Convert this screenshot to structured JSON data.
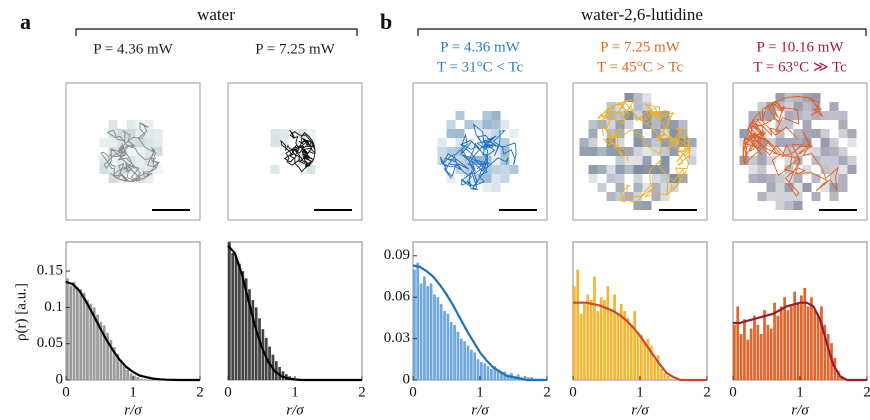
{
  "figure": {
    "panel_a": "a",
    "group_a": "water",
    "panel_b": "b",
    "group_b": "water-2,6-lutidine",
    "ylabel": "ρ(r) [a.u.]"
  },
  "chart_data": [
    {
      "type": "histogram",
      "title": "P = 4.36 mW",
      "title_color": "#222222",
      "color": "#9a9a9a",
      "xlabel": "r/σ",
      "bins": [
        0,
        0.05,
        0.1,
        0.15,
        0.2,
        0.25,
        0.3,
        0.35,
        0.4,
        0.45,
        0.5,
        0.55,
        0.6,
        0.65,
        0.7,
        0.75,
        0.8,
        0.85,
        0.9,
        0.95,
        1,
        1.05,
        1.1,
        1.15,
        1.2,
        1.25,
        1.3,
        1.35,
        1.4,
        1.45,
        1.5,
        1.55,
        1.6,
        1.65,
        1.7,
        1.75,
        1.8,
        1.85,
        1.9,
        1.95,
        2
      ],
      "values": [
        0.14,
        0.13,
        0.135,
        0.128,
        0.125,
        0.12,
        0.11,
        0.105,
        0.1,
        0.09,
        0.08,
        0.075,
        0.065,
        0.055,
        0.045,
        0.036,
        0.028,
        0.02,
        0.014,
        0.009,
        0.006,
        0.004,
        0.002,
        0.001,
        0,
        0,
        0,
        0,
        0,
        0,
        0,
        0,
        0,
        0,
        0,
        0,
        0,
        0,
        0,
        0
      ],
      "fit": {
        "color": "#000000",
        "x": [
          0,
          0.1,
          0.2,
          0.3,
          0.4,
          0.5,
          0.6,
          0.7,
          0.8,
          0.9,
          1,
          1.1,
          1.2,
          1.3,
          1.4,
          1.5,
          1.6,
          1.7,
          1.8,
          1.9,
          2
        ],
        "values": [
          0.135,
          0.132,
          0.123,
          0.108,
          0.091,
          0.073,
          0.056,
          0.041,
          0.028,
          0.018,
          0.011,
          0.006,
          0.0038,
          0.0019,
          0.0009,
          0.0004,
          0.0002,
          0,
          0,
          0,
          0
        ]
      },
      "xlim": [
        0,
        2
      ],
      "ylim": [
        0,
        0.19
      ],
      "xticks": [
        0,
        1,
        2
      ],
      "yticks": [
        0,
        0.05,
        0.1,
        0.15
      ]
    },
    {
      "type": "histogram",
      "title": "P = 7.25 mW",
      "title_color": "#222222",
      "color": "#444444",
      "xlabel": "r/σ",
      "bins": [
        0,
        0.05,
        0.1,
        0.15,
        0.2,
        0.25,
        0.3,
        0.35,
        0.4,
        0.45,
        0.5,
        0.55,
        0.6,
        0.65,
        0.7,
        0.75,
        0.8,
        0.85,
        0.9,
        0.95,
        1,
        1.05,
        1.1,
        1.15,
        1.2,
        1.25,
        1.3,
        1.35,
        1.4,
        1.45,
        1.5,
        1.55,
        1.6,
        1.65,
        1.7,
        1.75,
        1.8,
        1.85,
        1.9,
        1.95,
        2
      ],
      "values": [
        0.19,
        0.175,
        0.17,
        0.16,
        0.15,
        0.14,
        0.125,
        0.11,
        0.1,
        0.085,
        0.07,
        0.058,
        0.046,
        0.035,
        0.026,
        0.018,
        0.012,
        0.008,
        0.005,
        0.003,
        0.002,
        0.001,
        0,
        0,
        0,
        0,
        0,
        0,
        0,
        0,
        0,
        0,
        0,
        0,
        0,
        0,
        0,
        0,
        0,
        0
      ],
      "fit": {
        "color": "#000000",
        "x": [
          0,
          0.1,
          0.2,
          0.3,
          0.4,
          0.5,
          0.6,
          0.7,
          0.8,
          0.9,
          1,
          1.1,
          1.2,
          1.3,
          1.4,
          1.5,
          1.6,
          1.7,
          1.8,
          1.9,
          2
        ],
        "values": [
          0.185,
          0.175,
          0.148,
          0.112,
          0.075,
          0.046,
          0.025,
          0.012,
          0.005,
          0.002,
          0.0007,
          0,
          0,
          0,
          0,
          0,
          0,
          0,
          0,
          0,
          0
        ]
      },
      "xlim": [
        0,
        2
      ],
      "ylim": [
        0,
        0.19
      ],
      "xticks": [
        0,
        1,
        2
      ]
    },
    {
      "type": "histogram",
      "title": "P = 4.36 mW",
      "subtitle": "T = 31°C < Tc",
      "title_color": "#2a7fc1",
      "color": "#6fa8dc",
      "xlabel": "r/σ",
      "bins": [
        0,
        0.05,
        0.1,
        0.15,
        0.2,
        0.25,
        0.3,
        0.35,
        0.4,
        0.45,
        0.5,
        0.55,
        0.6,
        0.65,
        0.7,
        0.75,
        0.8,
        0.85,
        0.9,
        0.95,
        1,
        1.05,
        1.1,
        1.15,
        1.2,
        1.25,
        1.3,
        1.35,
        1.4,
        1.45,
        1.5,
        1.55,
        1.6,
        1.65,
        1.7,
        1.75,
        1.8,
        1.85,
        1.9,
        1.95,
        2
      ],
      "values": [
        0.08,
        0.085,
        0.07,
        0.075,
        0.068,
        0.07,
        0.062,
        0.06,
        0.055,
        0.05,
        0.048,
        0.042,
        0.04,
        0.035,
        0.03,
        0.028,
        0.025,
        0.022,
        0.02,
        0.015,
        0.013,
        0.012,
        0.01,
        0.008,
        0.01,
        0.007,
        0.005,
        0.006,
        0.004,
        0.005,
        0.003,
        0.004,
        0.002,
        0.003,
        0.002,
        0.002,
        0.001,
        0.001,
        0.001,
        0
      ],
      "fit": {
        "color": "#1f6fbf",
        "x": [
          0,
          0.1,
          0.2,
          0.3,
          0.4,
          0.5,
          0.6,
          0.7,
          0.8,
          0.9,
          1,
          1.1,
          1.2,
          1.3,
          1.4,
          1.5,
          1.6,
          1.7,
          1.8,
          1.9,
          2
        ],
        "values": [
          0.083,
          0.082,
          0.079,
          0.075,
          0.069,
          0.062,
          0.054,
          0.045,
          0.036,
          0.028,
          0.02,
          0.014,
          0.009,
          0.006,
          0.003,
          0.002,
          0.001,
          0,
          0,
          0,
          0
        ]
      },
      "xlim": [
        0,
        2
      ],
      "ylim": [
        0,
        0.1
      ],
      "xticks": [
        0,
        1,
        2
      ],
      "yticks": [
        0,
        0.03,
        0.06,
        0.09
      ]
    },
    {
      "type": "histogram",
      "title": "P = 7.25 mW",
      "subtitle": "T = 45°C > Tc",
      "title_color": "#e06a1b",
      "color": "#f2b733",
      "xlabel": "r/σ",
      "bins": [
        0,
        0.05,
        0.1,
        0.15,
        0.2,
        0.25,
        0.3,
        0.35,
        0.4,
        0.45,
        0.5,
        0.55,
        0.6,
        0.65,
        0.7,
        0.75,
        0.8,
        0.85,
        0.9,
        0.95,
        1,
        1.05,
        1.1,
        1.15,
        1.2,
        1.25,
        1.3,
        1.35,
        1.4,
        1.45,
        1.5,
        1.55,
        1.6,
        1.65,
        1.7,
        1.75,
        1.8,
        1.85,
        1.9,
        1.95,
        2
      ],
      "values": [
        0.068,
        0.08,
        0.048,
        0.055,
        0.062,
        0.058,
        0.075,
        0.05,
        0.06,
        0.058,
        0.068,
        0.05,
        0.062,
        0.048,
        0.055,
        0.05,
        0.045,
        0.04,
        0.05,
        0.035,
        0.033,
        0.028,
        0.03,
        0.025,
        0.015,
        0.018,
        0.008,
        0.005,
        0.003,
        0.001,
        0,
        0,
        0,
        0,
        0,
        0,
        0,
        0,
        0,
        0
      ],
      "fit": {
        "color": "#d4462a",
        "x": [
          0,
          0.1,
          0.2,
          0.3,
          0.4,
          0.5,
          0.6,
          0.7,
          0.8,
          0.9,
          1,
          1.1,
          1.2,
          1.3,
          1.4,
          1.5,
          1.6,
          1.7,
          1.8,
          1.9,
          2
        ],
        "values": [
          0.056,
          0.056,
          0.056,
          0.055,
          0.054,
          0.052,
          0.05,
          0.047,
          0.043,
          0.038,
          0.032,
          0.025,
          0.018,
          0.011,
          0.005,
          0.002,
          0,
          0,
          0,
          0,
          0
        ]
      },
      "xlim": [
        0,
        2
      ],
      "ylim": [
        0,
        0.1
      ],
      "xticks": [
        0,
        1,
        2
      ]
    },
    {
      "type": "histogram",
      "title": "P = 10.16 mW",
      "subtitle": "T = 63°C ≫ Tc",
      "title_color": "#a8183a",
      "color": "#e0662e",
      "xlabel": "r/σ",
      "bins": [
        0,
        0.05,
        0.1,
        0.15,
        0.2,
        0.25,
        0.3,
        0.35,
        0.4,
        0.45,
        0.5,
        0.55,
        0.6,
        0.65,
        0.7,
        0.75,
        0.8,
        0.85,
        0.9,
        0.95,
        1,
        1.05,
        1.1,
        1.15,
        1.2,
        1.25,
        1.3,
        1.35,
        1.4,
        1.45,
        1.5,
        1.55,
        1.6,
        1.65,
        1.7,
        1.75,
        1.8,
        1.85,
        1.9,
        1.95,
        2
      ],
      "values": [
        0.03,
        0.04,
        0.025,
        0.033,
        0.022,
        0.028,
        0.035,
        0.03,
        0.025,
        0.038,
        0.03,
        0.028,
        0.042,
        0.035,
        0.04,
        0.045,
        0.038,
        0.04,
        0.048,
        0.042,
        0.046,
        0.05,
        0.04,
        0.045,
        0.038,
        0.035,
        0.04,
        0.03,
        0.025,
        0.02,
        0.012,
        0.005,
        0.002,
        0,
        0,
        0,
        0,
        0,
        0,
        0
      ],
      "fit": {
        "color": "#a0182b",
        "x": [
          0,
          0.1,
          0.2,
          0.3,
          0.4,
          0.5,
          0.6,
          0.7,
          0.8,
          0.9,
          1,
          1.1,
          1.2,
          1.3,
          1.4,
          1.5,
          1.6,
          1.7,
          1.8,
          1.9,
          2
        ],
        "values": [
          0.031,
          0.031,
          0.032,
          0.033,
          0.034,
          0.035,
          0.036,
          0.038,
          0.04,
          0.041,
          0.042,
          0.042,
          0.04,
          0.033,
          0.02,
          0.008,
          0.002,
          0,
          0,
          0,
          0
        ]
      },
      "xlim": [
        0,
        2
      ],
      "ylim": [
        0,
        0.075
      ],
      "xticks": [
        0,
        1,
        2
      ]
    }
  ]
}
